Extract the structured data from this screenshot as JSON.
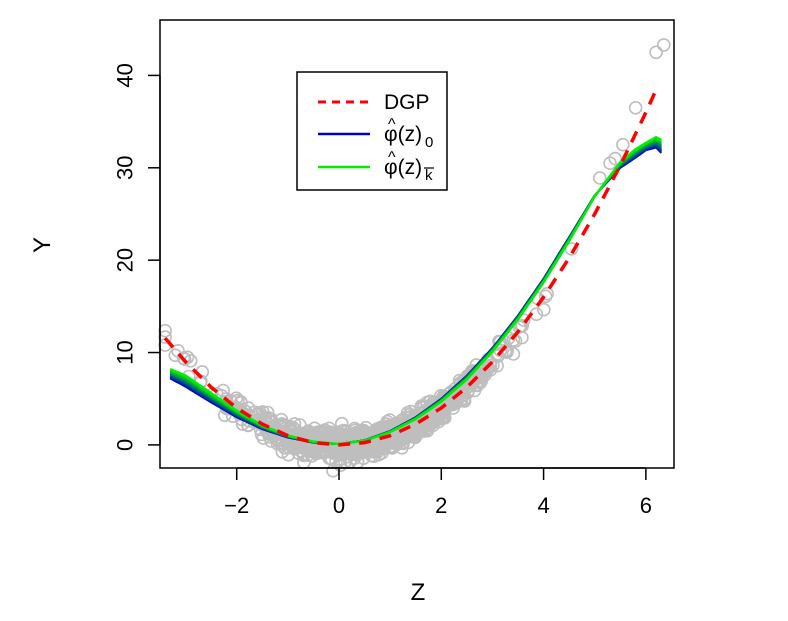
{
  "chart_data": {
    "type": "scatter",
    "title": "",
    "xlabel": "Z",
    "ylabel": "Y",
    "xlim": [
      -3.5,
      6.55
    ],
    "ylim": [
      -2.5,
      46
    ],
    "x_ticks": [
      -2,
      0,
      2,
      4,
      6
    ],
    "x_tick_labels": [
      "−2",
      "0",
      "2",
      "4",
      "6"
    ],
    "y_ticks": [
      0,
      10,
      20,
      30,
      40
    ],
    "y_tick_labels": [
      "0",
      "10",
      "20",
      "30",
      "40"
    ],
    "grid": false,
    "legend_position": "top-center",
    "legend": [
      {
        "series": "dgp",
        "label": "DGP",
        "style": "dashed",
        "color": "#ff0000"
      },
      {
        "series": "phi0",
        "label": "φ̂(z)₀",
        "base": "φ(z)",
        "hat": "^",
        "subscript": "0",
        "style": "solid",
        "color": "#0000cd"
      },
      {
        "series": "phik",
        "label": "φ̂(z)k̅",
        "base": "φ(z)",
        "hat": "^",
        "subscript": "k",
        "subscript_bar": true,
        "style": "solid",
        "color": "#00ee00"
      }
    ],
    "scatter": {
      "color": "#bebebe",
      "marker": "open-circle",
      "z_range": [
        -3.4,
        6.3
      ],
      "relation": "y = z^2 + noise",
      "notable_points": [
        {
          "x": -3.4,
          "y": 10.8
        },
        {
          "x": -3.2,
          "y": 9.7
        },
        {
          "x": -2.9,
          "y": 9.1
        },
        {
          "x": -2.7,
          "y": 6.9
        },
        {
          "x": 5.1,
          "y": 28.9
        },
        {
          "x": 5.3,
          "y": 30.5
        },
        {
          "x": 5.4,
          "y": 31.0
        },
        {
          "x": 5.55,
          "y": 32.5
        },
        {
          "x": 5.8,
          "y": 36.5
        },
        {
          "x": 6.2,
          "y": 42.5
        },
        {
          "x": 6.35,
          "y": 43.3
        }
      ]
    },
    "series": [
      {
        "id": "dgp",
        "x": [
          -3.4,
          -3.0,
          -2.5,
          -2.0,
          -1.5,
          -1.0,
          -0.5,
          0.0,
          0.5,
          1.0,
          1.5,
          2.0,
          2.5,
          3.0,
          3.5,
          4.0,
          4.5,
          5.0,
          5.5,
          6.0,
          6.2
        ],
        "y": [
          11.56,
          9.0,
          6.25,
          4.0,
          2.25,
          1.0,
          0.25,
          0.0,
          0.25,
          1.0,
          2.25,
          4.0,
          6.25,
          9.0,
          12.25,
          16.0,
          20.25,
          25.0,
          30.25,
          36.0,
          38.44
        ]
      },
      {
        "id": "phi0",
        "x": [
          -3.3,
          -3.0,
          -2.5,
          -2.0,
          -1.5,
          -1.0,
          -0.5,
          0.0,
          0.5,
          1.0,
          1.5,
          2.0,
          2.5,
          3.0,
          3.5,
          4.0,
          4.5,
          5.0,
          5.5,
          5.8,
          6.0,
          6.2,
          6.3
        ],
        "y": [
          7.2,
          6.3,
          4.6,
          3.0,
          1.7,
          0.8,
          0.25,
          0.1,
          0.5,
          1.5,
          3.0,
          5.0,
          7.5,
          10.5,
          14.0,
          18.0,
          22.5,
          27.0,
          30.0,
          31.1,
          31.9,
          32.2,
          31.6
        ]
      },
      {
        "id": "phik",
        "x": [
          -3.3,
          -3.0,
          -2.5,
          -2.0,
          -1.5,
          -1.0,
          -0.5,
          0.0,
          0.5,
          1.0,
          1.5,
          2.0,
          2.5,
          3.0,
          3.5,
          4.0,
          4.5,
          5.0,
          5.5,
          5.8,
          6.0,
          6.2,
          6.3
        ],
        "y": [
          8.2,
          7.5,
          5.6,
          3.7,
          2.1,
          1.0,
          0.35,
          0.1,
          0.45,
          1.4,
          2.8,
          4.7,
          7.1,
          10.1,
          13.6,
          17.6,
          22.1,
          26.9,
          30.6,
          32.0,
          32.7,
          33.3,
          33.0
        ]
      }
    ]
  }
}
